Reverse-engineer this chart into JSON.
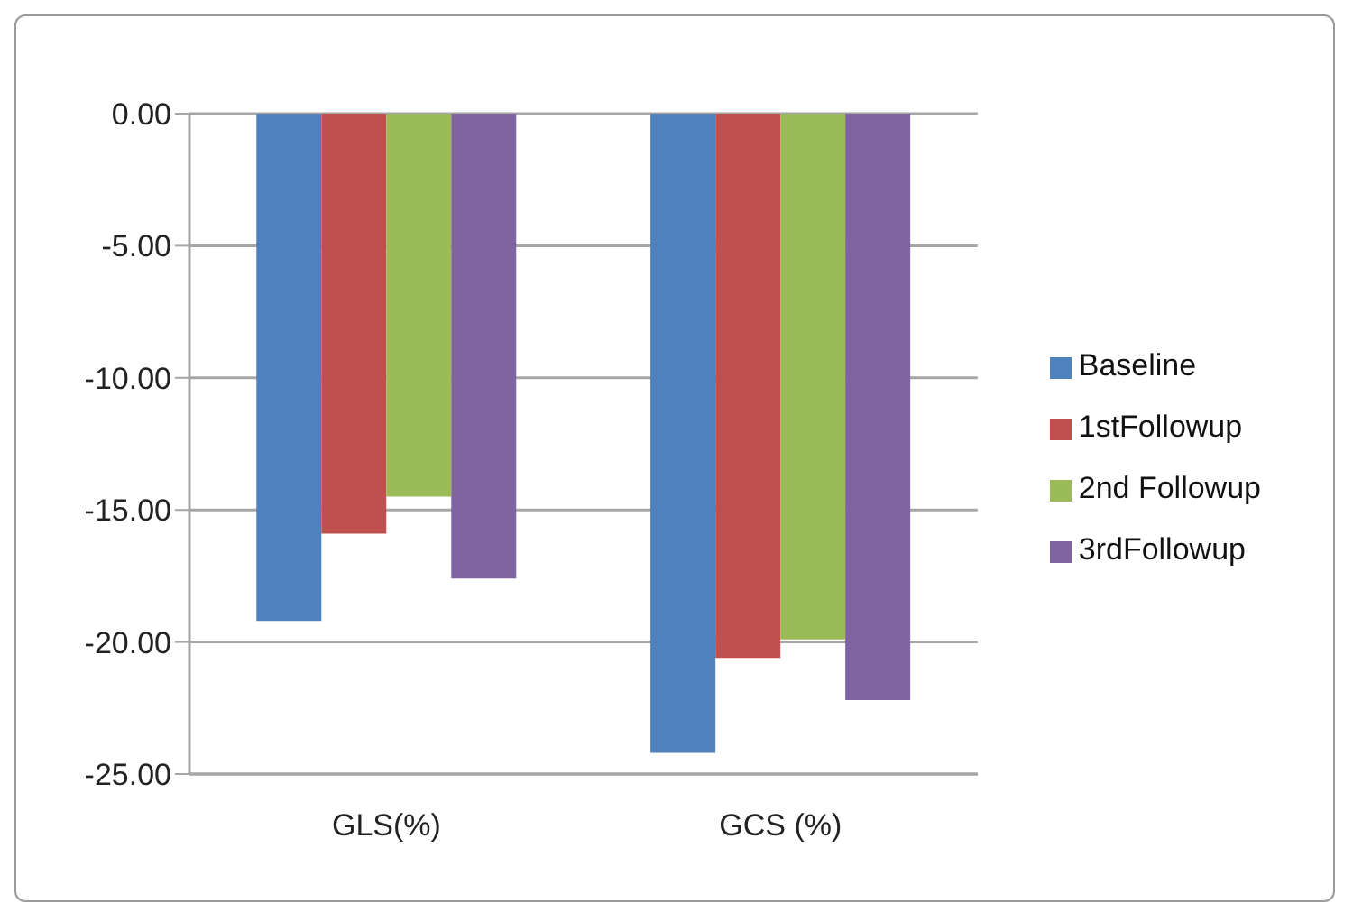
{
  "chart_data": {
    "type": "bar",
    "categories": [
      "GLS(%)",
      "GCS (%)"
    ],
    "series": [
      {
        "name": "Baseline",
        "color": "#4f81bd",
        "values": [
          -19.2,
          -24.2
        ]
      },
      {
        "name": "1stFollowup",
        "color": "#c0504d",
        "values": [
          -15.9,
          -20.6
        ]
      },
      {
        "name": "2nd Followup",
        "color": "#9bbb59",
        "values": [
          -14.5,
          -19.9
        ]
      },
      {
        "name": "3rdFollowup",
        "color": "#8064a2",
        "values": [
          -17.6,
          -22.2
        ]
      }
    ],
    "ylim": [
      -25,
      0
    ],
    "yticks": [
      {
        "value": -25,
        "label": "-25.00"
      },
      {
        "value": -20,
        "label": "-20.00"
      },
      {
        "value": -15,
        "label": "-15.00"
      },
      {
        "value": -10,
        "label": "-10.00"
      },
      {
        "value": -5,
        "label": "-5.00"
      },
      {
        "value": 0,
        "label": "0.00"
      }
    ],
    "grid": "y",
    "legend": "right"
  }
}
